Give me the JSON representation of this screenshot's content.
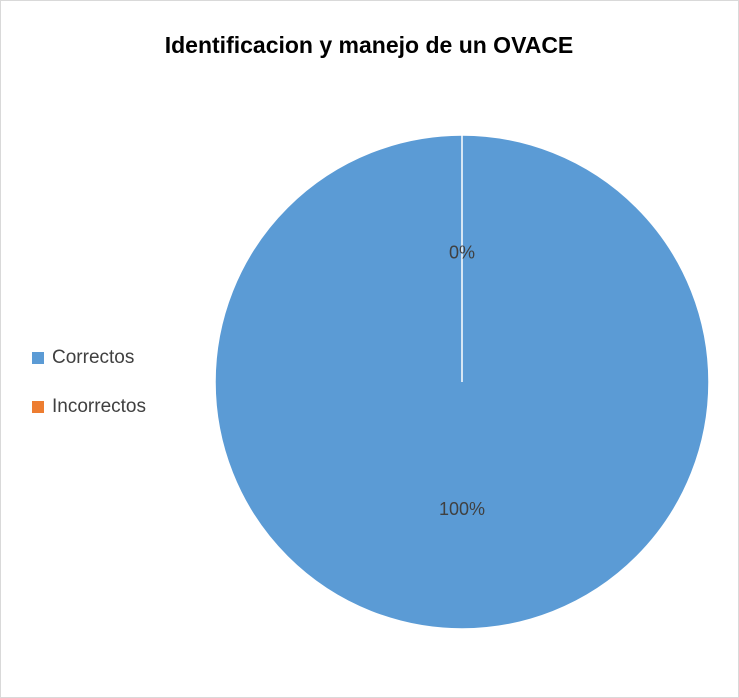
{
  "chart_data": {
    "type": "pie",
    "title": "Identificacion y manejo de un OVACE",
    "categories": [
      "Correctos",
      "Incorrectos"
    ],
    "values": [
      100,
      0
    ],
    "value_labels": [
      "100%",
      "0%"
    ],
    "colors": [
      "#5b9bd5",
      "#ed7d31"
    ],
    "legend": "left"
  }
}
